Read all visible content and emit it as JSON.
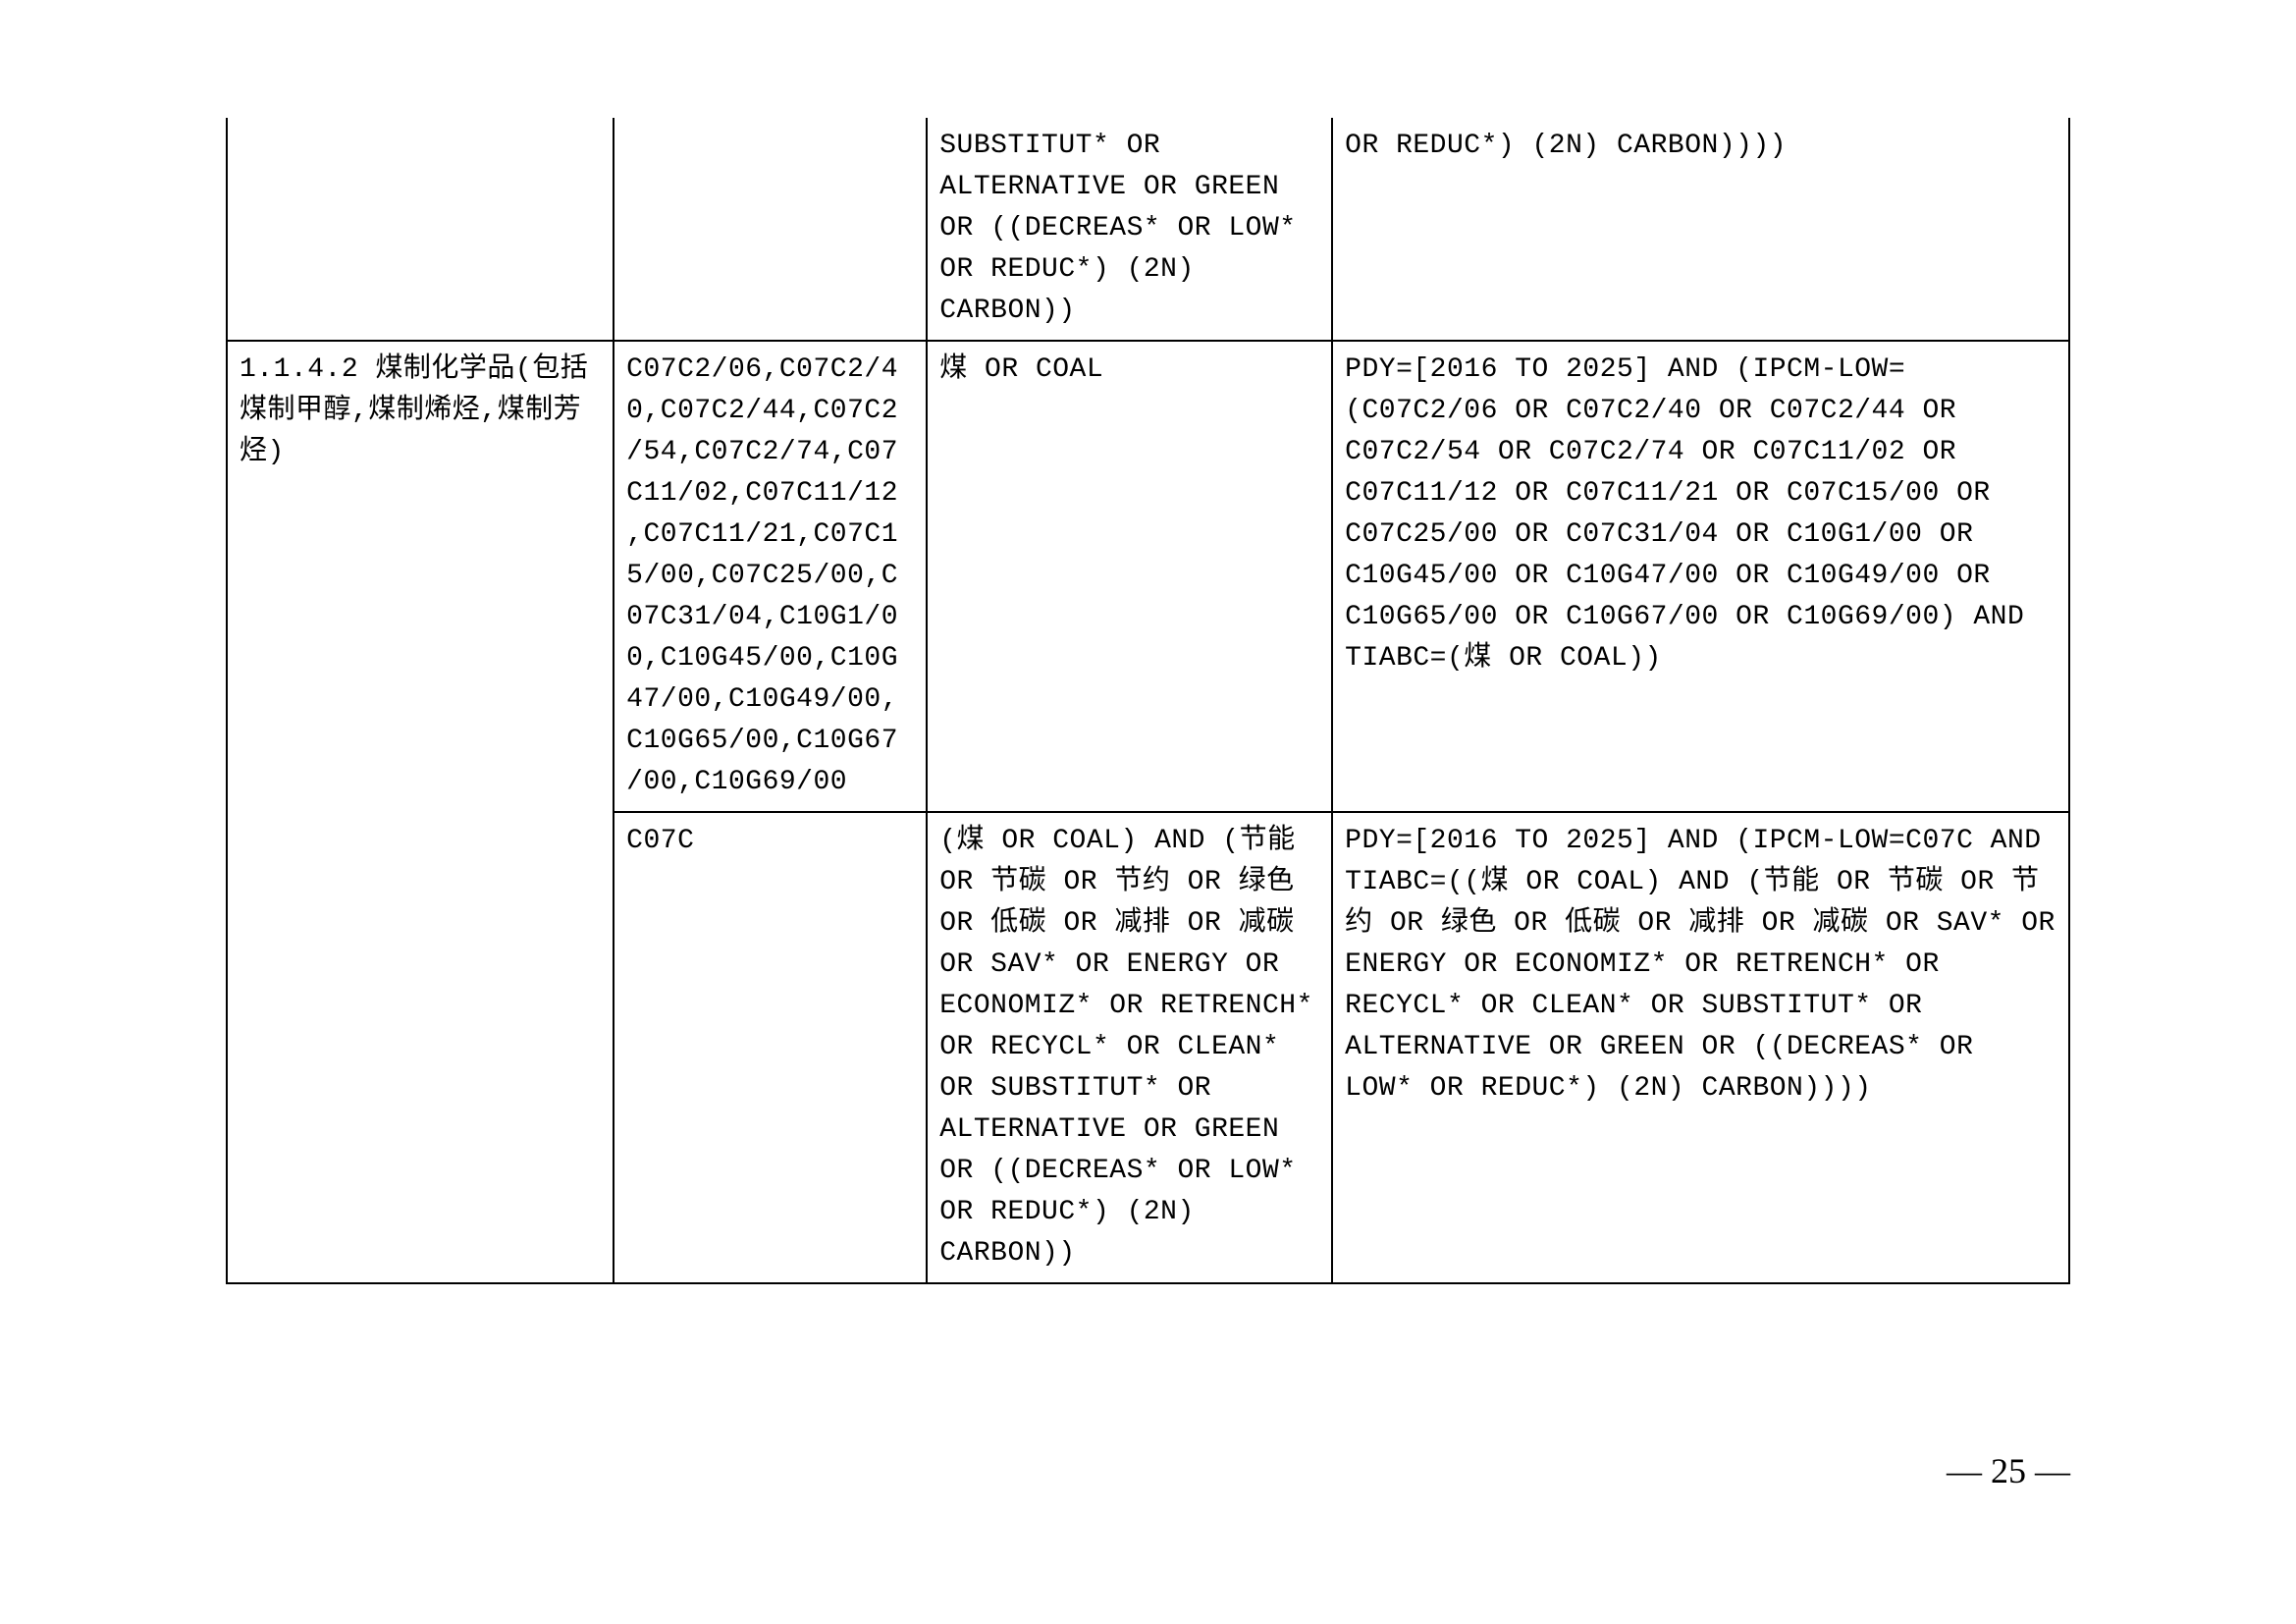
{
  "table": {
    "rows": [
      {
        "col1": "",
        "col2": "",
        "col3": "SUBSTITUT* OR ALTERNATIVE OR GREEN OR ((DECREAS* OR LOW* OR REDUC*) (2N) CARBON))",
        "col4": "OR REDUC*) (2N) CARBON))))",
        "col1_no_top": true,
        "col2_no_top": true,
        "col3_no_top": true,
        "col4_no_top": true,
        "col1_no_bottom": false,
        "col2_no_bottom": false
      },
      {
        "col1": "1.1.4.2 煤制化学品(包括煤制甲醇,煤制烯烃,煤制芳烃)",
        "col2": "C07C2/06,C07C2/40,C07C2/44,C07C2/54,C07C2/74,C07C11/02,C07C11/12,C07C11/21,C07C15/00,C07C25/00,C07C31/04,C10G1/00,C10G45/00,C10G47/00,C10G49/00,C10G65/00,C10G67/00,C10G69/00",
        "col3": "煤 OR COAL",
        "col4": "PDY=[2016 TO 2025] AND (IPCM-LOW=(C07C2/06 OR C07C2/40 OR C07C2/44 OR C07C2/54 OR C07C2/74 OR C07C11/02 OR C07C11/12 OR C07C11/21 OR C07C15/00 OR C07C25/00 OR C07C31/04 OR C10G1/00 OR C10G45/00 OR C10G47/00 OR C10G49/00 OR C10G65/00 OR C10G67/00 OR C10G69/00)  AND TIABC=(煤 OR COAL))",
        "col1_no_bottom": true
      },
      {
        "col1": "",
        "col2": "C07C",
        "col3": "(煤 OR COAL) AND (节能 OR 节碳 OR 节约 OR 绿色 OR 低碳 OR 减排 OR 减碳 OR SAV* OR ENERGY OR ECONOMIZ* OR RETRENCH* OR RECYCL* OR CLEAN* OR SUBSTITUT* OR ALTERNATIVE OR GREEN OR ((DECREAS* OR LOW* OR REDUC*) (2N) CARBON))",
        "col4": "PDY=[2016 TO 2025] AND (IPCM-LOW=C07C  AND TIABC=((煤 OR COAL) AND (节能 OR 节碳 OR 节约 OR 绿色 OR 低碳 OR 减排 OR 减碳 OR SAV* OR ENERGY OR ECONOMIZ* OR RETRENCH* OR RECYCL* OR CLEAN* OR SUBSTITUT* OR ALTERNATIVE OR GREEN OR ((DECREAS* OR LOW* OR REDUC*) (2N) CARBON))))",
        "col1_no_top": true
      }
    ]
  },
  "page_number": "— 25 —",
  "styling": {
    "background_color": "#ffffff",
    "border_color": "#000000",
    "border_width": 2,
    "font_size": 28,
    "page_number_font_size": 36,
    "text_color": "#000000",
    "font_family": "SimSun, Courier New"
  }
}
